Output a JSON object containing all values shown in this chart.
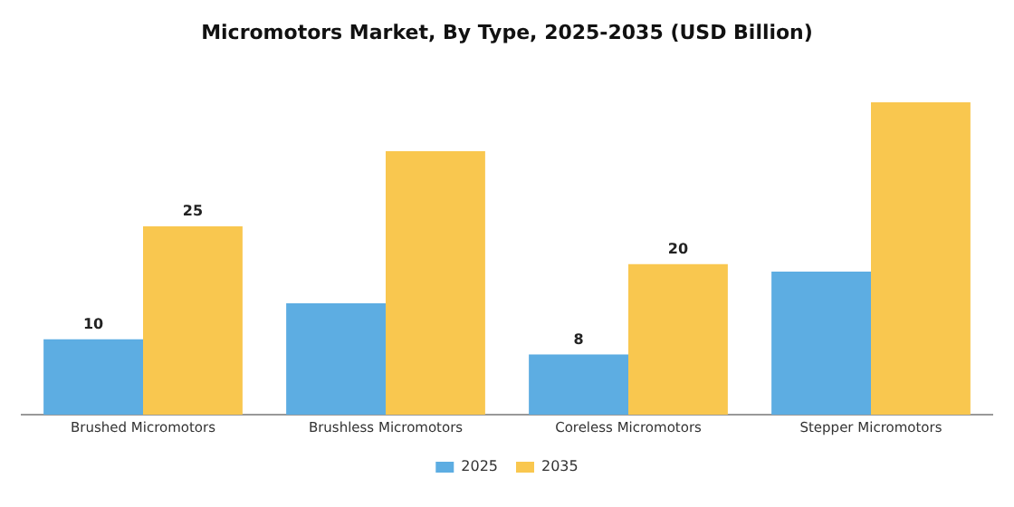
{
  "chart_data": {
    "type": "bar",
    "title": "Micromotors Market, By Type, 2025-2035 (USD Billion)",
    "categories": [
      "Brushed Micromotors",
      "Brushless Micromotors",
      "Coreless Micromotors",
      "Stepper Micromotors"
    ],
    "series": [
      {
        "name": "2025",
        "color": "#5dade2",
        "values": [
          10,
          14.8,
          8,
          19
        ],
        "value_labels": [
          "10",
          null,
          "8",
          null
        ]
      },
      {
        "name": "2035",
        "color": "#f9c74f",
        "values": [
          25,
          35,
          20,
          41.5
        ],
        "value_labels": [
          "25",
          null,
          "20",
          null
        ]
      }
    ],
    "legend": "bottom"
  }
}
